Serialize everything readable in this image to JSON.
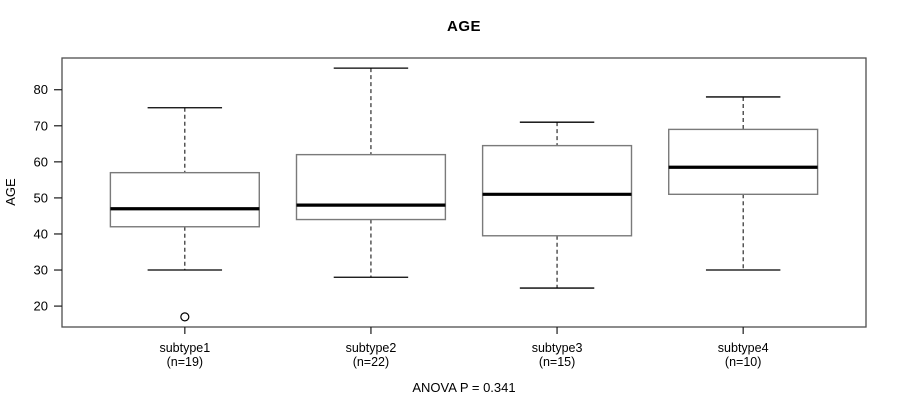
{
  "title": "AGE",
  "colors": {
    "frame": "#4f4f4f",
    "axis": "#1a1a1a",
    "box_border": "#7a7a7a",
    "whisker": "#000000",
    "median": "#000000",
    "text": "#000000",
    "background": "#ffffff"
  },
  "chart_data": {
    "type": "boxplot",
    "title": "AGE",
    "ylabel": "AGE",
    "annotation": "ANOVA P = 0.341",
    "ylim": [
      14.2,
      88.8
    ],
    "yticks": [
      20,
      30,
      40,
      50,
      60,
      70,
      80
    ],
    "grid": false,
    "groups": [
      {
        "label": "subtype1",
        "sublabel": "(n=19)",
        "n": 19,
        "whisker_low": 30,
        "q1": 42,
        "median": 47,
        "q3": 57,
        "whisker_high": 75,
        "outliers": [
          17
        ]
      },
      {
        "label": "subtype2",
        "sublabel": "(n=22)",
        "n": 22,
        "whisker_low": 28,
        "q1": 44,
        "median": 48,
        "q3": 62,
        "whisker_high": 86,
        "outliers": []
      },
      {
        "label": "subtype3",
        "sublabel": "(n=15)",
        "n": 15,
        "whisker_low": 25,
        "q1": 39.5,
        "median": 51,
        "q3": 64.5,
        "whisker_high": 71,
        "outliers": []
      },
      {
        "label": "subtype4",
        "sublabel": "(n=10)",
        "n": 10,
        "whisker_low": 30,
        "q1": 51,
        "median": 58.5,
        "q3": 69,
        "whisker_high": 78,
        "outliers": []
      }
    ]
  }
}
